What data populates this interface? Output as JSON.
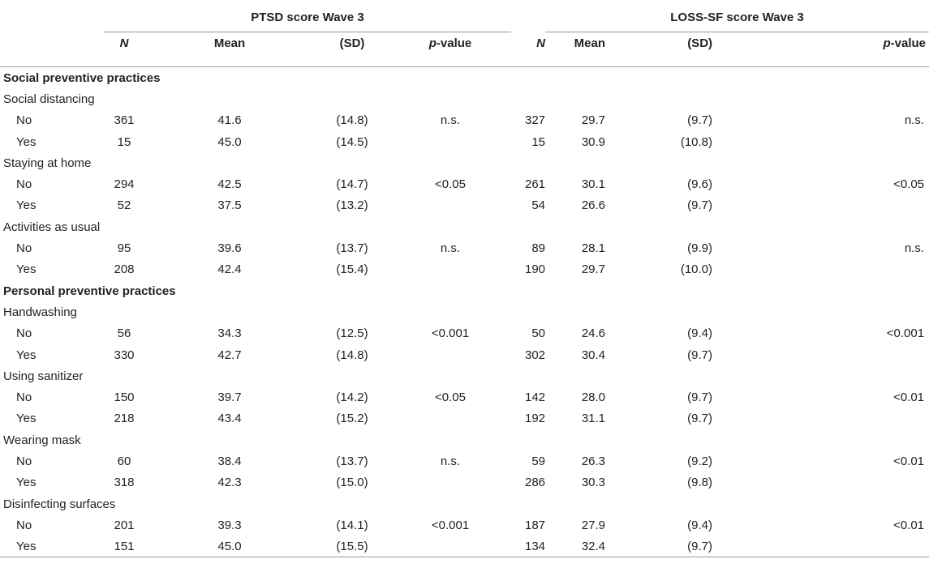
{
  "headers": {
    "group_left": "PTSD score Wave 3",
    "group_right": "LOSS-SF score Wave 3",
    "n": "N",
    "mean": "Mean",
    "sd": "(SD)",
    "p_italic": "p",
    "p_rest": "-value"
  },
  "sections": [
    {
      "title": "Social preventive practices",
      "variables": [
        {
          "name": "Social distancing",
          "rows": [
            {
              "level": "No",
              "ptsd_n": "361",
              "ptsd_mean": "41.6",
              "ptsd_sd": "(14.8)",
              "ptsd_p": "n.s.",
              "loss_n": "327",
              "loss_mean": "29.7",
              "loss_sd": "(9.7)",
              "loss_p": "n.s."
            },
            {
              "level": "Yes",
              "ptsd_n": "15",
              "ptsd_mean": "45.0",
              "ptsd_sd": "(14.5)",
              "ptsd_p": "",
              "loss_n": "15",
              "loss_mean": "30.9",
              "loss_sd": "(10.8)",
              "loss_p": ""
            }
          ]
        },
        {
          "name": "Staying at home",
          "rows": [
            {
              "level": "No",
              "ptsd_n": "294",
              "ptsd_mean": "42.5",
              "ptsd_sd": "(14.7)",
              "ptsd_p": "<0.05",
              "loss_n": "261",
              "loss_mean": "30.1",
              "loss_sd": "(9.6)",
              "loss_p": "<0.05"
            },
            {
              "level": "Yes",
              "ptsd_n": "52",
              "ptsd_mean": "37.5",
              "ptsd_sd": "(13.2)",
              "ptsd_p": "",
              "loss_n": "54",
              "loss_mean": "26.6",
              "loss_sd": "(9.7)",
              "loss_p": ""
            }
          ]
        },
        {
          "name": "Activities as usual",
          "rows": [
            {
              "level": "No",
              "ptsd_n": "95",
              "ptsd_mean": "39.6",
              "ptsd_sd": "(13.7)",
              "ptsd_p": "n.s.",
              "loss_n": "89",
              "loss_mean": "28.1",
              "loss_sd": "(9.9)",
              "loss_p": "n.s."
            },
            {
              "level": "Yes",
              "ptsd_n": "208",
              "ptsd_mean": "42.4",
              "ptsd_sd": "(15.4)",
              "ptsd_p": "",
              "loss_n": "190",
              "loss_mean": "29.7",
              "loss_sd": "(10.0)",
              "loss_p": ""
            }
          ]
        }
      ]
    },
    {
      "title": "Personal preventive practices",
      "variables": [
        {
          "name": "Handwashing",
          "rows": [
            {
              "level": "No",
              "ptsd_n": "56",
              "ptsd_mean": "34.3",
              "ptsd_sd": "(12.5)",
              "ptsd_p": "<0.001",
              "loss_n": "50",
              "loss_mean": "24.6",
              "loss_sd": "(9.4)",
              "loss_p": "<0.001"
            },
            {
              "level": "Yes",
              "ptsd_n": "330",
              "ptsd_mean": "42.7",
              "ptsd_sd": "(14.8)",
              "ptsd_p": "",
              "loss_n": "302",
              "loss_mean": "30.4",
              "loss_sd": "(9.7)",
              "loss_p": ""
            }
          ]
        },
        {
          "name": "Using sanitizer",
          "rows": [
            {
              "level": "No",
              "ptsd_n": "150",
              "ptsd_mean": "39.7",
              "ptsd_sd": "(14.2)",
              "ptsd_p": "<0.05",
              "loss_n": "142",
              "loss_mean": "28.0",
              "loss_sd": "(9.7)",
              "loss_p": "<0.01"
            },
            {
              "level": "Yes",
              "ptsd_n": "218",
              "ptsd_mean": "43.4",
              "ptsd_sd": "(15.2)",
              "ptsd_p": "",
              "loss_n": "192",
              "loss_mean": "31.1",
              "loss_sd": "(9.7)",
              "loss_p": ""
            }
          ]
        },
        {
          "name": "Wearing mask",
          "rows": [
            {
              "level": "No",
              "ptsd_n": "60",
              "ptsd_mean": "38.4",
              "ptsd_sd": "(13.7)",
              "ptsd_p": "n.s.",
              "loss_n": "59",
              "loss_mean": "26.3",
              "loss_sd": "(9.2)",
              "loss_p": "<0.01"
            },
            {
              "level": "Yes",
              "ptsd_n": "318",
              "ptsd_mean": "42.3",
              "ptsd_sd": "(15.0)",
              "ptsd_p": "",
              "loss_n": "286",
              "loss_mean": "30.3",
              "loss_sd": "(9.8)",
              "loss_p": ""
            }
          ]
        },
        {
          "name": "Disinfecting surfaces",
          "rows": [
            {
              "level": "No",
              "ptsd_n": "201",
              "ptsd_mean": "39.3",
              "ptsd_sd": "(14.1)",
              "ptsd_p": "<0.001",
              "loss_n": "187",
              "loss_mean": "27.9",
              "loss_sd": "(9.4)",
              "loss_p": "<0.01"
            },
            {
              "level": "Yes",
              "ptsd_n": "151",
              "ptsd_mean": "45.0",
              "ptsd_sd": "(15.5)",
              "ptsd_p": "",
              "loss_n": "134",
              "loss_mean": "32.4",
              "loss_sd": "(9.7)",
              "loss_p": ""
            }
          ]
        }
      ]
    }
  ]
}
